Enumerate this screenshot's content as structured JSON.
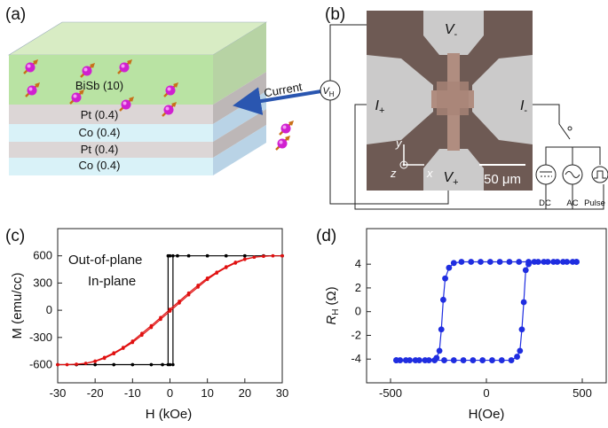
{
  "panels": {
    "a": {
      "label": "(a)",
      "layers": [
        "BiSb (10)",
        "Pt (0.4)",
        "Co (0.4)",
        "Pt (0.4)",
        "Co (0.4)"
      ],
      "arrow_label": "Current"
    },
    "b": {
      "label": "(b)",
      "v_top": {
        "main": "V",
        "sub": "-"
      },
      "v_bottom": {
        "main": "V",
        "sub": "+"
      },
      "i_left": {
        "main": "I",
        "sub": "+"
      },
      "i_right": {
        "main": "I",
        "sub": "-"
      },
      "v_hall": {
        "main": "V",
        "sub": "H"
      },
      "axes": [
        "x",
        "y",
        "z"
      ],
      "scale_bar": "50 μm",
      "sources": [
        "DC",
        "AC",
        "Pulse"
      ]
    },
    "c": {
      "label": "(c)"
    },
    "d": {
      "label": "(d)"
    }
  },
  "chart_data": [
    {
      "type": "line",
      "x_label": "H (kOe)",
      "y_label": "M (emu/cc)",
      "xlim": [
        -30,
        30
      ],
      "xticks": [
        -30,
        -20,
        -10,
        0,
        10,
        20,
        30
      ],
      "ylim": [
        -800,
        900
      ],
      "yticks": [
        -600,
        -300,
        0,
        300,
        600
      ],
      "legend": "upper left",
      "series": [
        {
          "name": "Out-of-plane",
          "color": "#000000",
          "x": [
            -30,
            -25,
            -20,
            -15,
            -10,
            -5,
            -2,
            0,
            0.8,
            0.8,
            2,
            5,
            10,
            15,
            20,
            25,
            30,
            30,
            25,
            20,
            15,
            10,
            5,
            2,
            0,
            -0.5,
            -0.5,
            -2,
            -5,
            -10,
            -15,
            -20,
            -25,
            -30
          ],
          "values": [
            -600,
            -600,
            -600,
            -600,
            -600,
            -600,
            -600,
            -600,
            -600,
            600,
            600,
            600,
            600,
            600,
            600,
            600,
            600,
            600,
            600,
            600,
            600,
            600,
            600,
            600,
            600,
            600,
            -600,
            -600,
            -600,
            -600,
            -600,
            -600,
            -600,
            -600
          ]
        },
        {
          "name": "In-plane",
          "color": "#e01010",
          "x": [
            -30,
            -27.5,
            -25,
            -22.5,
            -20,
            -17.5,
            -15,
            -12.5,
            -10,
            -7.5,
            -5,
            -2.5,
            0,
            2.5,
            5,
            7.5,
            10,
            12.5,
            15,
            17.5,
            20,
            22.5,
            25,
            27.5,
            30,
            30,
            27.5,
            25,
            22.5,
            20,
            17.5,
            15,
            12.5,
            10,
            7.5,
            5,
            2.5,
            0,
            -2.5,
            -5,
            -7.5,
            -10,
            -12.5,
            -15,
            -17.5,
            -20,
            -22.5,
            -25,
            -27.5,
            -30
          ],
          "values": [
            -600,
            -600,
            -595,
            -585,
            -565,
            -530,
            -480,
            -420,
            -355,
            -275,
            -190,
            -100,
            -10,
            80,
            170,
            255,
            340,
            410,
            470,
            520,
            560,
            585,
            595,
            600,
            600,
            600,
            600,
            595,
            585,
            565,
            530,
            480,
            420,
            355,
            275,
            190,
            100,
            10,
            -80,
            -170,
            -255,
            -340,
            -410,
            -470,
            -520,
            -560,
            -585,
            -595,
            -600,
            -600
          ]
        }
      ]
    },
    {
      "type": "line",
      "x_label": "H(Oe)",
      "y_label": "R",
      "y_label_sub": "H",
      "y_label_unit": "(Ω)",
      "xlim": [
        -625,
        625
      ],
      "xticks": [
        -500,
        0,
        500
      ],
      "ylim": [
        -6,
        7
      ],
      "yticks": [
        -4,
        -2,
        0,
        2,
        4
      ],
      "series": [
        {
          "color": "#1f2de0",
          "x": [
            -470,
            -420,
            -370,
            -320,
            -270,
            -220,
            -170,
            -120,
            -70,
            -20,
            30,
            80,
            130,
            160,
            175,
            185,
            195,
            205,
            220,
            250,
            300,
            350,
            400,
            450,
            470,
            470,
            420,
            370,
            320,
            270,
            220,
            170,
            120,
            70,
            20,
            -30,
            -80,
            -130,
            -170,
            -195,
            -215,
            -225,
            -235,
            -245,
            -260,
            -300,
            -350,
            -400,
            -450,
            -470
          ],
          "values": [
            -4.1,
            -4.1,
            -4.1,
            -4.1,
            -4.1,
            -4.1,
            -4.1,
            -4.1,
            -4.1,
            -4.1,
            -4.1,
            -4.1,
            -4.1,
            -3.8,
            -3.3,
            -1.5,
            0.8,
            3.5,
            4.0,
            4.2,
            4.2,
            4.2,
            4.2,
            4.2,
            4.2,
            4.2,
            4.2,
            4.2,
            4.2,
            4.2,
            4.2,
            4.2,
            4.2,
            4.2,
            4.2,
            4.2,
            4.2,
            4.2,
            4.1,
            3.7,
            2.8,
            1.0,
            -1.5,
            -3.3,
            -3.9,
            -4.1,
            -4.1,
            -4.1,
            -4.1,
            -4.1
          ]
        }
      ]
    }
  ]
}
